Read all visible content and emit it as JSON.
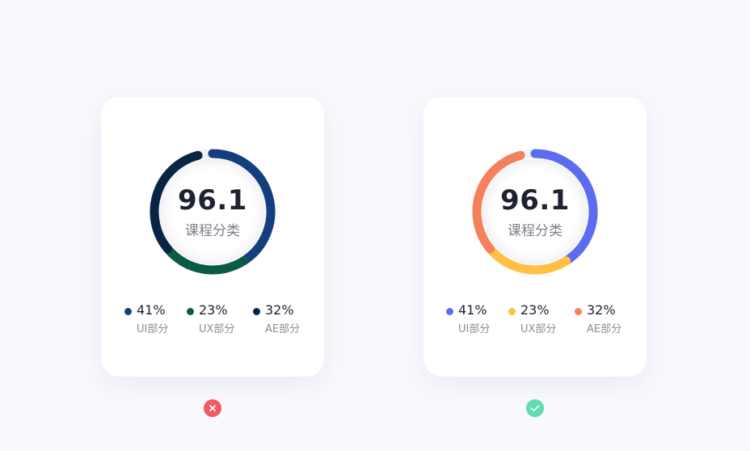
{
  "chart_data": [
    {
      "type": "pie",
      "variant": "donut",
      "verdict": "incorrect",
      "center_value": "96.1",
      "center_label": "课程分类",
      "series": [
        {
          "value": 41,
          "percent_label": "41%",
          "label": "UI部分",
          "color": "#143f7c"
        },
        {
          "value": 23,
          "percent_label": "23%",
          "label": "UX部分",
          "color": "#0b5b44"
        },
        {
          "value": 32,
          "percent_label": "32%",
          "label": "AE部分",
          "color": "#0a2446"
        }
      ]
    },
    {
      "type": "pie",
      "variant": "donut",
      "verdict": "correct",
      "center_value": "96.1",
      "center_label": "课程分类",
      "series": [
        {
          "value": 41,
          "percent_label": "41%",
          "label": "UI部分",
          "color": "#5b6cf0"
        },
        {
          "value": 23,
          "percent_label": "23%",
          "label": "UX部分",
          "color": "#ffc043"
        },
        {
          "value": 32,
          "percent_label": "32%",
          "label": "AE部分",
          "color": "#f4805c"
        }
      ]
    }
  ],
  "status": {
    "bad": {
      "icon": "close-icon",
      "color": "#ef5d62"
    },
    "good": {
      "icon": "check-icon",
      "color": "#5fdcb2"
    }
  },
  "colors": {
    "background": "#f8f8fd",
    "card": "#ffffff",
    "track": "#f1f1f4"
  }
}
